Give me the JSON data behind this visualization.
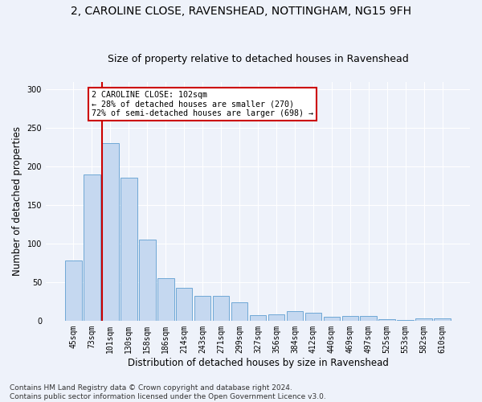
{
  "title_line1": "2, CAROLINE CLOSE, RAVENSHEAD, NOTTINGHAM, NG15 9FH",
  "title_line2": "Size of property relative to detached houses in Ravenshead",
  "xlabel": "Distribution of detached houses by size in Ravenshead",
  "ylabel": "Number of detached properties",
  "categories": [
    "45sqm",
    "73sqm",
    "101sqm",
    "130sqm",
    "158sqm",
    "186sqm",
    "214sqm",
    "243sqm",
    "271sqm",
    "299sqm",
    "327sqm",
    "356sqm",
    "384sqm",
    "412sqm",
    "440sqm",
    "469sqm",
    "497sqm",
    "525sqm",
    "553sqm",
    "582sqm",
    "610sqm"
  ],
  "values": [
    78,
    190,
    230,
    185,
    105,
    55,
    43,
    32,
    32,
    24,
    7,
    8,
    12,
    10,
    5,
    6,
    6,
    2,
    1,
    3,
    3
  ],
  "bar_color": "#c5d8f0",
  "bar_edge_color": "#6fa8d6",
  "highlight_bar_index": 2,
  "annotation_text": "2 CAROLINE CLOSE: 102sqm\n← 28% of detached houses are smaller (270)\n72% of semi-detached houses are larger (698) →",
  "annotation_box_color": "#ffffff",
  "annotation_box_edge": "#cc0000",
  "highlight_line_color": "#cc0000",
  "ylim": [
    0,
    310
  ],
  "yticks": [
    0,
    50,
    100,
    150,
    200,
    250,
    300
  ],
  "footnote": "Contains HM Land Registry data © Crown copyright and database right 2024.\nContains public sector information licensed under the Open Government Licence v3.0.",
  "background_color": "#eef2fa",
  "grid_color": "#ffffff",
  "title_fontsize": 10,
  "subtitle_fontsize": 9,
  "axis_label_fontsize": 8.5,
  "tick_fontsize": 7,
  "footnote_fontsize": 6.5
}
